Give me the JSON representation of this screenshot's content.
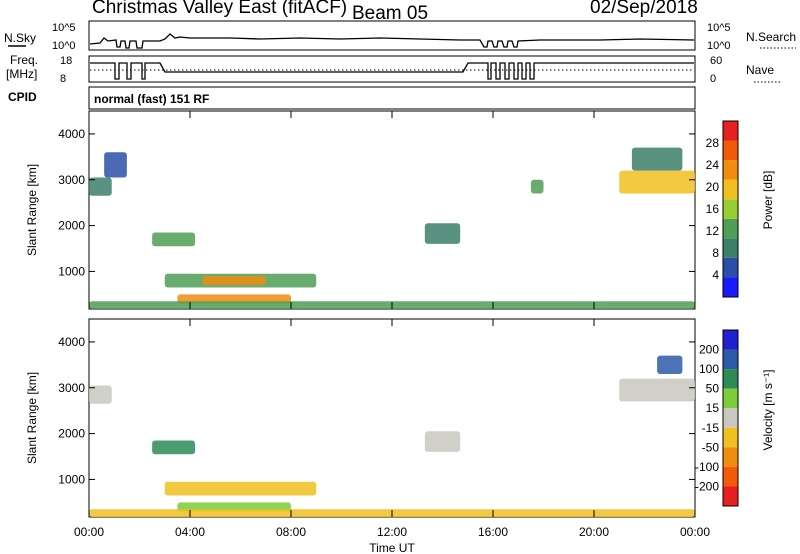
{
  "header": {
    "station": "Christmas Valley East (fitACF)",
    "beam": "Beam 05",
    "date": "02/Sep/2018"
  },
  "strip_labels": {
    "nsky": "N.Sky",
    "nsky_ticks": [
      "10^5",
      "10^0"
    ],
    "nsearch": "N.Search",
    "nsearch_ticks": [
      "10^5",
      "10^0"
    ],
    "freq": "Freq.",
    "freq_unit": "[MHz]",
    "freq_ticks": [
      "18",
      "8"
    ],
    "nave": "Nave",
    "nave_ticks": [
      "60",
      "0"
    ],
    "cpid": "CPID",
    "cpid_value": "normal (fast) 151 RF"
  },
  "colors": {
    "power": [
      "#1a1aff",
      "#2b4fa8",
      "#3d7f6b",
      "#4f9f55",
      "#9acd32",
      "#f0c020",
      "#f08c10",
      "#f05a08",
      "#e62020"
    ],
    "velocity": [
      "#2020d0",
      "#2b5aa8",
      "#2e8b57",
      "#7ccd3a",
      "#c8c8c0",
      "#f0c020",
      "#f08c10",
      "#f05a08",
      "#e62020"
    ]
  },
  "chart_data": [
    {
      "type": "heatmap",
      "panel": "power",
      "ylabel": "Slant Range [km]",
      "ylim": [
        180,
        4500
      ],
      "yticks": [
        "1000",
        "2000",
        "3000",
        "4000"
      ],
      "colorbar_label": "Power [dB]",
      "colorbar_ticks": [
        "4",
        "8",
        "12",
        "16",
        "20",
        "24",
        "28"
      ],
      "colorbar_range": [
        0,
        32
      ],
      "regions": [
        {
          "t0": 0.0,
          "t1": 0.9,
          "r0": 2650,
          "r1": 3050,
          "value": 10
        },
        {
          "t0": 0.6,
          "t1": 1.5,
          "r0": 3050,
          "r1": 3600,
          "value": 6
        },
        {
          "t0": 2.5,
          "t1": 4.2,
          "r0": 1550,
          "r1": 1850,
          "value": 14
        },
        {
          "t0": 3.0,
          "t1": 9.0,
          "r0": 650,
          "r1": 950,
          "value": 14
        },
        {
          "t0": 4.5,
          "t1": 7.0,
          "r0": 700,
          "r1": 900,
          "value": 22
        },
        {
          "t0": 3.5,
          "t1": 8.0,
          "r0": 300,
          "r1": 500,
          "value": 22
        },
        {
          "t0": 0.0,
          "t1": 24.0,
          "r0": 180,
          "r1": 350,
          "value": 12
        },
        {
          "t0": 13.3,
          "t1": 14.7,
          "r0": 1600,
          "r1": 2050,
          "value": 10
        },
        {
          "t0": 21.0,
          "t1": 24.0,
          "r0": 2700,
          "r1": 3200,
          "value": 18
        },
        {
          "t0": 21.5,
          "t1": 23.5,
          "r0": 3200,
          "r1": 3700,
          "value": 8
        },
        {
          "t0": 17.5,
          "t1": 18.0,
          "r0": 2700,
          "r1": 3000,
          "value": 12
        }
      ]
    },
    {
      "type": "heatmap",
      "panel": "velocity",
      "xlabel": "Time UT",
      "xticks": [
        "00:00",
        "04:00",
        "08:00",
        "12:00",
        "16:00",
        "20:00",
        "00:00"
      ],
      "xlim": [
        0,
        24
      ],
      "ylabel": "Slant Range [km]",
      "ylim": [
        180,
        4500
      ],
      "yticks": [
        "1000",
        "2000",
        "3000",
        "4000"
      ],
      "colorbar_label": "Velocity [m s⁻¹]",
      "colorbar_ticks": [
        "200",
        "100",
        "50",
        "15",
        "-15",
        "-50",
        "-100",
        "-200"
      ],
      "regions": [
        {
          "t0": 0.0,
          "t1": 0.9,
          "r0": 2650,
          "r1": 3050,
          "value": 0
        },
        {
          "t0": 2.5,
          "t1": 4.2,
          "r0": 1550,
          "r1": 1850,
          "value": 60
        },
        {
          "t0": 3.0,
          "t1": 9.0,
          "r0": 650,
          "r1": 950,
          "value": -20
        },
        {
          "t0": 3.5,
          "t1": 8.0,
          "r0": 300,
          "r1": 500,
          "value": 30
        },
        {
          "t0": 0.0,
          "t1": 24.0,
          "r0": 180,
          "r1": 350,
          "value": -30
        },
        {
          "t0": 13.3,
          "t1": 14.7,
          "r0": 1600,
          "r1": 2050,
          "value": 0
        },
        {
          "t0": 21.0,
          "t1": 24.0,
          "r0": 2700,
          "r1": 3200,
          "value": 0
        },
        {
          "t0": 22.5,
          "t1": 23.5,
          "r0": 3300,
          "r1": 3700,
          "value": 150
        }
      ]
    }
  ]
}
